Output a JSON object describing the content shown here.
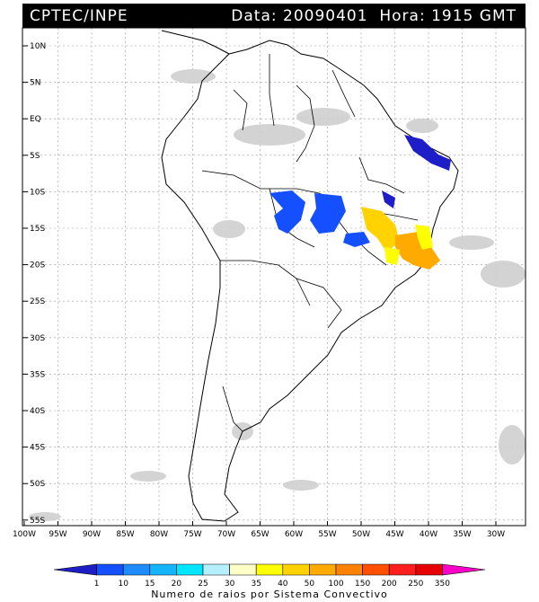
{
  "header": {
    "agency": "CPTEC/INPE",
    "data_label": "Data:",
    "date": "20090401",
    "hora_label": "Hora:",
    "time": "1915",
    "tz": "GMT"
  },
  "axes": {
    "lat_labels": [
      "10N",
      "5N",
      "EQ",
      "5S",
      "10S",
      "15S",
      "20S",
      "25S",
      "30S",
      "35S",
      "40S",
      "45S",
      "50S",
      "55S"
    ],
    "lon_labels": [
      "100W",
      "95W",
      "90W",
      "85W",
      "80W",
      "75W",
      "70W",
      "65W",
      "60W",
      "55W",
      "50W",
      "45W",
      "40W",
      "35W",
      "30W"
    ]
  },
  "legend": {
    "caption": "Numero de raios por Sistema Convectivo",
    "values": [
      "1",
      "10",
      "15",
      "20",
      "25",
      "30",
      "35",
      "40",
      "50",
      "100",
      "150",
      "200",
      "250",
      "350"
    ],
    "colors": [
      "#1e1ec8",
      "#1450ff",
      "#1e8cff",
      "#14b4ff",
      "#00e6ff",
      "#b4f0ff",
      "#ffffc8",
      "#ffff00",
      "#ffd200",
      "#ffaa00",
      "#ff8200",
      "#ff5000",
      "#ff1e1e",
      "#e60000",
      "#ff00c8"
    ]
  },
  "map_colors": {
    "cloud": "#c8c8c8",
    "land_border": "#000000",
    "grid": "#9a9a9a",
    "frame": "#000000"
  },
  "chart_data": {
    "type": "map",
    "title": "CPTEC/INPE Data: 20090401 Hora: 1915 GMT",
    "lon_range": [
      -100,
      -25
    ],
    "lat_range": [
      -56,
      12
    ],
    "grid_step_deg": 5,
    "lightning_systems": [
      {
        "lon": -60.5,
        "lat": -13.5,
        "color": "#1450ff"
      },
      {
        "lon": -53.5,
        "lat": -13.5,
        "color": "#1450ff"
      },
      {
        "lon": -48.5,
        "lat": -16.5,
        "color": "#1450ff"
      },
      {
        "lon": -45.0,
        "lat": -11.0,
        "color": "#1e1ec8"
      },
      {
        "lon": -39.5,
        "lat": -5.5,
        "color": "#1e1ec8"
      },
      {
        "lon": -46.0,
        "lat": -16.0,
        "color": "#ffd200"
      },
      {
        "lon": -42.5,
        "lat": -19.5,
        "color": "#ffaa00"
      },
      {
        "lon": -39.5,
        "lat": -16.5,
        "color": "#ffff00"
      },
      {
        "lon": -44.5,
        "lat": -19.0,
        "color": "#ffff00"
      }
    ]
  }
}
